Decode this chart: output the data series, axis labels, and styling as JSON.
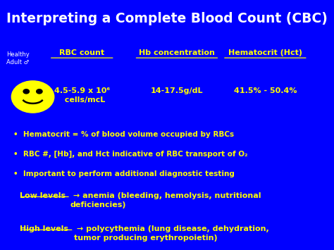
{
  "bg_color": "#0000FF",
  "title": "Interpreting a Complete Blood Count (CBC)",
  "title_color": "#FFFFFF",
  "header_label": "Healthy\nAdult ♂",
  "col1_header": "RBC count",
  "col2_header": "Hb concentration",
  "col3_header": "Hematocrit (Hct)",
  "col1_value": "4.5-5.9 x 10⁶\n  cells/mcL",
  "col2_value": "14-17.5g/dL",
  "col3_value": "41.5% - 50.4%",
  "bullet1": "Hematocrit = % of blood volume occupied by RBCs",
  "bullet2": "RBC #, [Hb], and Hct indicative of RBC transport of O₂",
  "bullet3": "Important to perform additional diagnostic testing",
  "low_label": "Low levels",
  "low_text": " → anemia (bleeding, hemolysis, nutritional\ndeficiencies)",
  "high_label": "High levels",
  "high_text": " → polycythemia (lung disease, dehydration,\ntumor producing erythropoietin)",
  "yellow": "#FFFF00",
  "white": "#FFFFFF"
}
